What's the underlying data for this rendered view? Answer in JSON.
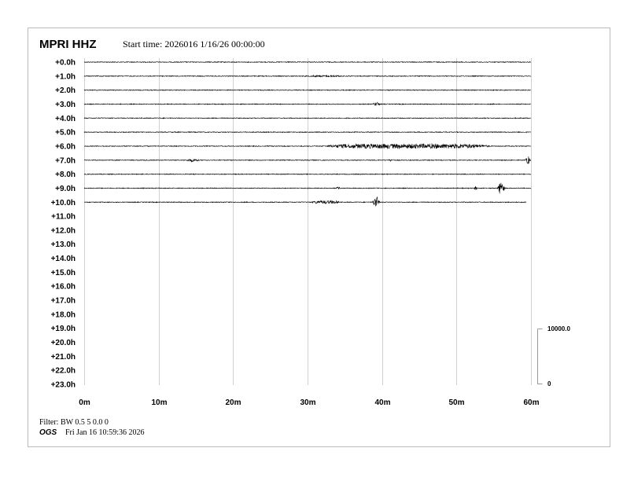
{
  "header": {
    "station": "MPRI HHZ",
    "start_time": "Start time: 2026016  1/16/26 00:00:00"
  },
  "footer": {
    "filter": "Filter: BW 0.5 5 0.0 0",
    "org": "OGS",
    "timestamp": "Fri Jan 16 10:59:36 2026"
  },
  "chart_data": {
    "type": "line",
    "subtype": "helicorder",
    "title": "MPRI HHZ",
    "subtitle": "Start time: 2026016  1/16/26 00:00:00",
    "xlim": [
      0,
      60
    ],
    "x_ticks": [
      "0m",
      "10m",
      "20m",
      "30m",
      "40m",
      "50m",
      "60m"
    ],
    "y_ticks": [
      "+0.0h",
      "+1.0h",
      "+2.0h",
      "+3.0h",
      "+4.0h",
      "+5.0h",
      "+6.0h",
      "+7.0h",
      "+8.0h",
      "+9.0h",
      "+10.0h",
      "+11.0h",
      "+12.0h",
      "+13.0h",
      "+14.0h",
      "+15.0h",
      "+16.0h",
      "+17.0h",
      "+18.0h",
      "+19.0h",
      "+20.0h",
      "+21.0h",
      "+22.0h",
      "+23.0h"
    ],
    "grid": "vertical",
    "scale_bar": {
      "top_label": "10000.0",
      "bottom_label": "0",
      "value": 10000
    },
    "trace_color": "#000000",
    "grid_color": "#d0d0d0",
    "hours_recorded": 11,
    "last_trace_end_min": 59.4,
    "background_noise_counts": 70,
    "events": [
      {
        "hour": 1,
        "start_min": 30,
        "end_min": 35,
        "peak_counts": 150
      },
      {
        "hour": 3,
        "start_min": 38.5,
        "end_min": 40,
        "peak_counts": 360
      },
      {
        "hour": 6,
        "start_min": 32,
        "end_min": 55,
        "peak_counts": 430
      },
      {
        "hour": 7,
        "start_min": 13,
        "end_min": 16,
        "peak_counts": 290
      },
      {
        "hour": 7,
        "start_min": 40.8,
        "end_min": 41.5,
        "peak_counts": 290
      },
      {
        "hour": 7,
        "start_min": 59.2,
        "end_min": 60,
        "peak_counts": 860
      },
      {
        "hour": 9,
        "start_min": 33.7,
        "end_min": 34.5,
        "peak_counts": 290
      },
      {
        "hour": 9,
        "start_min": 52.2,
        "end_min": 53,
        "peak_counts": 360
      },
      {
        "hour": 9,
        "start_min": 55.4,
        "end_min": 56.6,
        "peak_counts": 1430
      },
      {
        "hour": 10,
        "start_min": 30.5,
        "end_min": 34.5,
        "peak_counts": 290
      },
      {
        "hour": 10,
        "start_min": 38.6,
        "end_min": 39.8,
        "peak_counts": 1150
      }
    ]
  }
}
